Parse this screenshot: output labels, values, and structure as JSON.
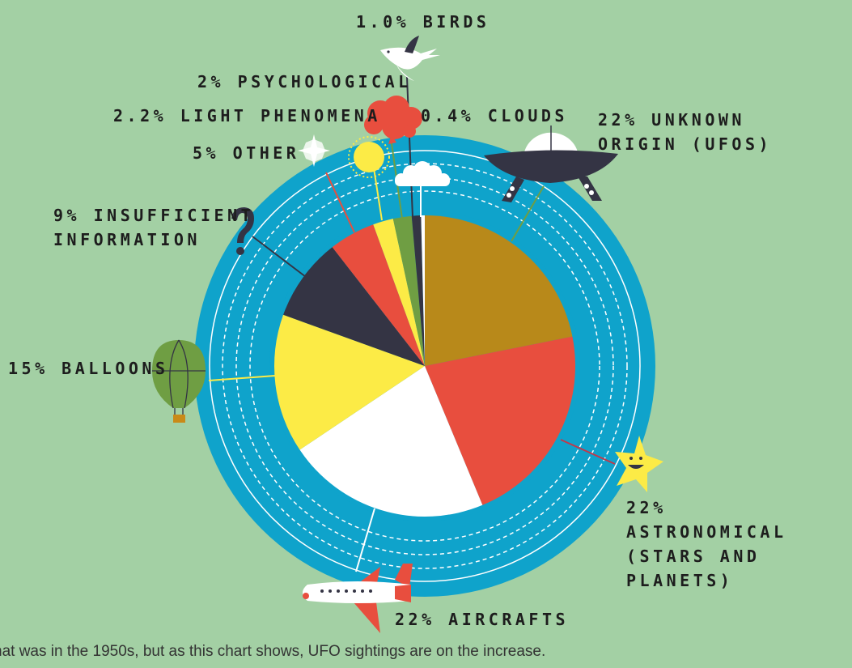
{
  "chart_data": {
    "type": "pie",
    "slices": [
      {
        "label": "22% UNKNOWN ORIGIN (UFOS)",
        "value": 22,
        "color": "#b8891a"
      },
      {
        "label": "22% ASTRONOMICAL (STARS AND PLANETS)",
        "value": 22,
        "color": "#e84e3e"
      },
      {
        "label": "22% AIRCRAFTS",
        "value": 22,
        "color": "#ffffff"
      },
      {
        "label": "15% BALLOONS",
        "value": 15,
        "color": "#fceb46"
      },
      {
        "label": "9% INSUFFICIENT INFORMATION",
        "value": 9,
        "color": "#343444"
      },
      {
        "label": "5% OTHER",
        "value": 5,
        "color": "#e84e3e"
      },
      {
        "label": "2.2% LIGHT PHENOMENA",
        "value": 2.2,
        "color": "#fceb46"
      },
      {
        "label": "2% PSYCHOLOGICAL",
        "value": 2,
        "color": "#6f9e43"
      },
      {
        "label": "1.0% BIRDS",
        "value": 1.0,
        "color": "#343444"
      },
      {
        "label": "0.4% CLOUDS",
        "value": 0.4,
        "color": "#ffffff"
      }
    ]
  },
  "labels": {
    "birds": "1.0% BIRDS",
    "psychological": "2% PSYCHOLOGICAL",
    "light": "2.2% LIGHT PHENOMENA",
    "clouds": "0.4% CLOUDS",
    "ufo_line1": "22% UNKNOWN",
    "ufo_line2": "ORIGIN (UFOS)",
    "other": "5% OTHER",
    "insufficient_line1": "9% INSUFFICIENT",
    "insufficient_line2": "INFORMATION",
    "balloons": "15% BALLOONS",
    "astro_line1": "22%",
    "astro_line2": "ASTRONOMICAL",
    "astro_line3": "(STARS AND",
    "astro_line4": "PLANETS)",
    "aircraft": "22% AIRCRAFTS"
  },
  "footer_text": "hat was in the 1950s, but as this chart shows, UFO sightings are on the increase.",
  "colors": {
    "background": "#a3d0a4",
    "ring": "#0fa3cb",
    "navy": "#343444",
    "red": "#e84e3e",
    "yellow": "#fceb46",
    "green": "#6f9e43",
    "mustard": "#b8891a"
  }
}
